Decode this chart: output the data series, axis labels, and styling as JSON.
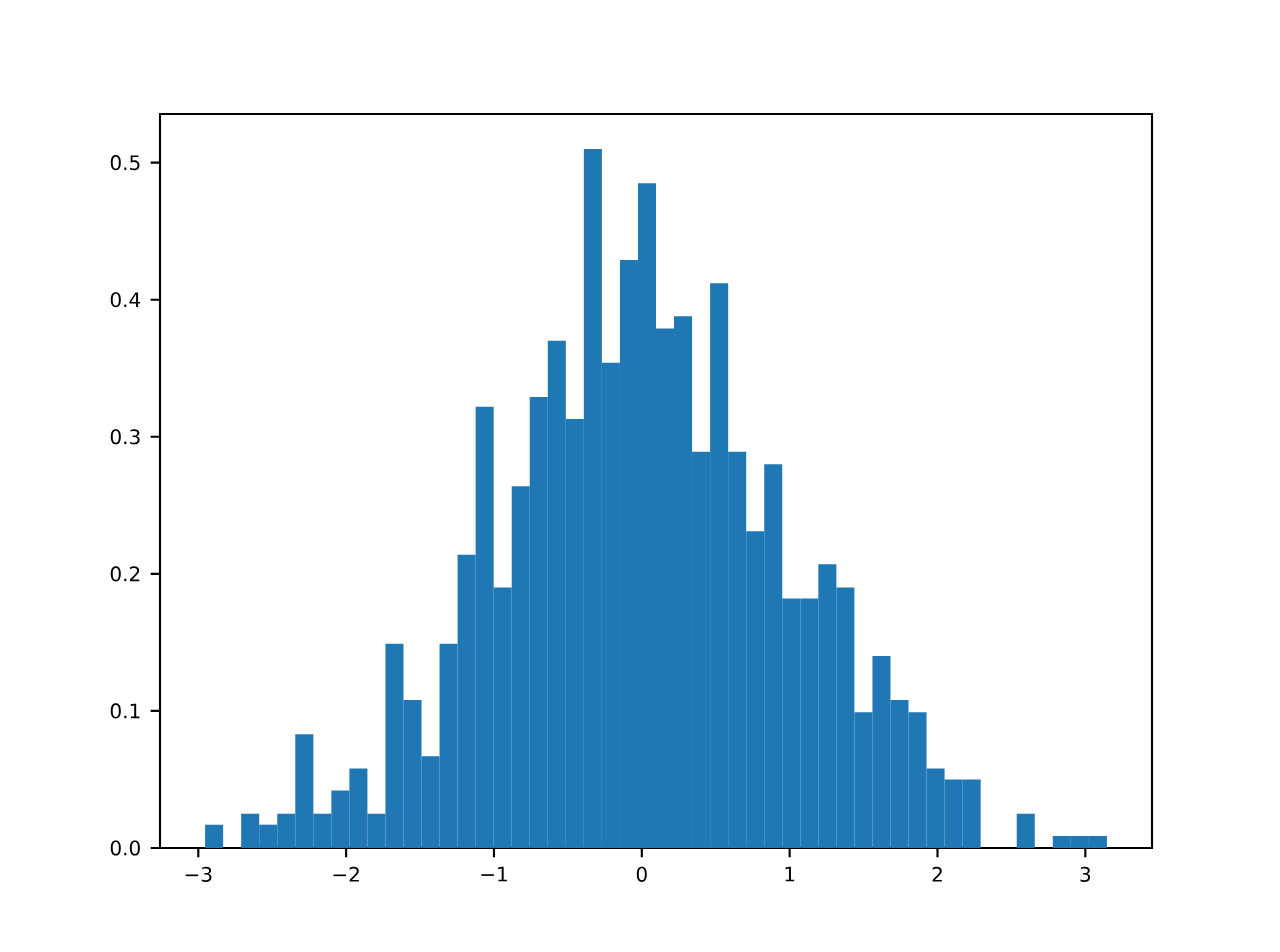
{
  "chart_data": {
    "type": "histogram",
    "color": "#1f77b4",
    "bins": [
      -2.954,
      -2.832,
      -2.71,
      -2.588,
      -2.466,
      -2.344,
      -2.222,
      -2.1,
      -1.978,
      -1.856,
      -1.734,
      -1.612,
      -1.49,
      -1.368,
      -1.246,
      -1.124,
      -1.002,
      -0.88,
      -0.758,
      -0.636,
      -0.514,
      -0.392,
      -0.27,
      -0.148,
      -0.026,
      0.096,
      0.218,
      0.34,
      0.462,
      0.584,
      0.706,
      0.828,
      0.95,
      1.072,
      1.194,
      1.316,
      1.438,
      1.56,
      1.682,
      1.804,
      1.926,
      2.048,
      2.17,
      2.292,
      2.414,
      2.536,
      2.658,
      2.78,
      2.902,
      3.024,
      3.146
    ],
    "values": [
      0.017,
      0,
      0.025,
      0.017,
      0.025,
      0.083,
      0.025,
      0.042,
      0.058,
      0.025,
      0.149,
      0.108,
      0.067,
      0.149,
      0.214,
      0.322,
      0.19,
      0.264,
      0.329,
      0.37,
      0.313,
      0.51,
      0.354,
      0.429,
      0.485,
      0.379,
      0.388,
      0.289,
      0.412,
      0.289,
      0.231,
      0.28,
      0.182,
      0.182,
      0.207,
      0.19,
      0.099,
      0.14,
      0.108,
      0.099,
      0.058,
      0.05,
      0.05,
      0,
      0,
      0.025,
      0,
      0.0087,
      0.0087,
      0.0087
    ],
    "xlim": [
      -3.259,
      3.451
    ],
    "ylim": [
      0,
      0.5355
    ],
    "xticks": [
      {
        "value": -3,
        "label": "−3"
      },
      {
        "value": -2,
        "label": "−2"
      },
      {
        "value": -1,
        "label": "−1"
      },
      0,
      1,
      2,
      3
    ],
    "yticks": [
      {
        "value": 0,
        "label": "0.0"
      },
      {
        "value": 0.1,
        "label": "0.1"
      },
      {
        "value": 0.2,
        "label": "0.2"
      },
      {
        "value": 0.3,
        "label": "0.3"
      },
      {
        "value": 0.4,
        "label": "0.4"
      },
      {
        "value": 0.5,
        "label": "0.5"
      }
    ]
  }
}
